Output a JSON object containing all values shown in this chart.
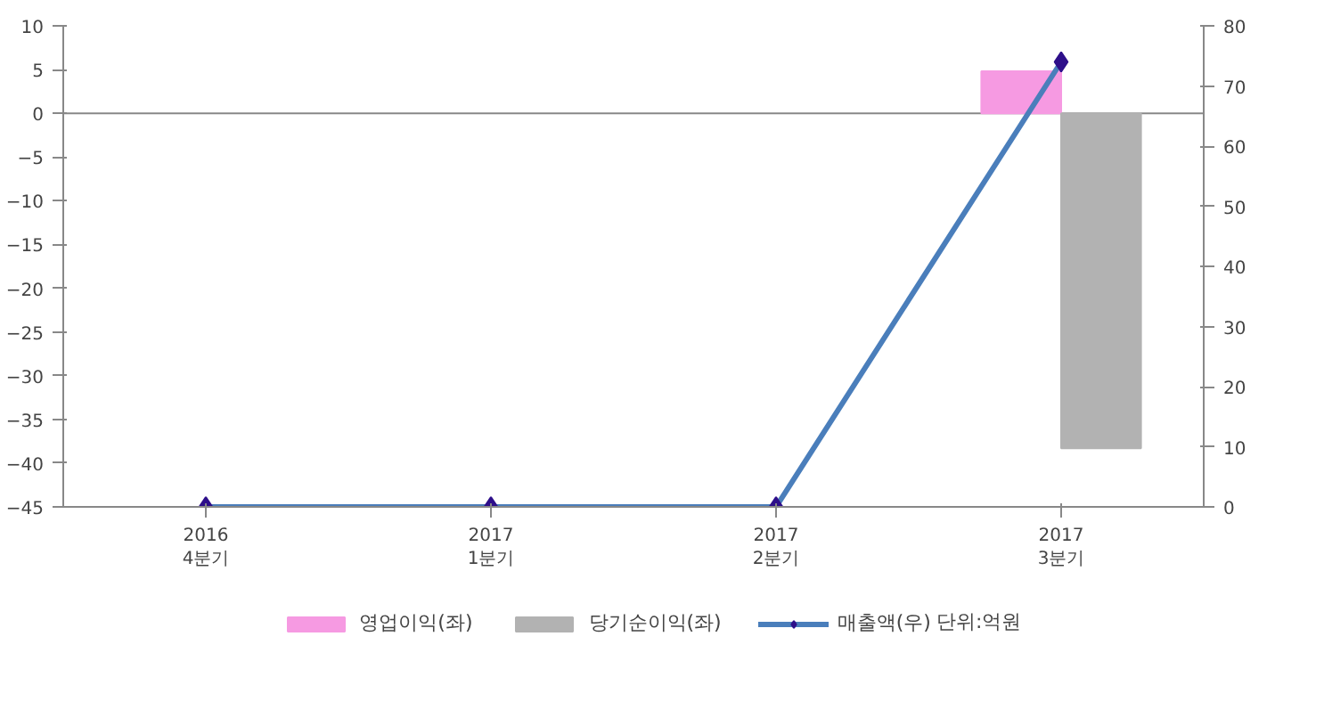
{
  "chart_data": {
    "type": "bar",
    "categories": [
      "2016\n4분기",
      "2017\n1분기",
      "2017\n2분기",
      "2017\n3분기"
    ],
    "series": [
      {
        "name": "영업이익(좌)",
        "color": "#f69ae2",
        "values": [
          null,
          null,
          null,
          4.8
        ]
      },
      {
        "name": "당기순이익(좌)",
        "color": "#b2b2b2",
        "values": [
          null,
          null,
          null,
          -38.3
        ]
      },
      {
        "name": "매출액(우)",
        "type": "line",
        "axis": "y2",
        "color": "#4a7ebb",
        "marker": "diamond",
        "values": [
          0,
          0,
          0,
          74
        ]
      }
    ],
    "ylim": [
      -45,
      10
    ],
    "yticks": [
      -45,
      -40,
      -35,
      -30,
      -25,
      -20,
      -15,
      -10,
      -5,
      0,
      5,
      10
    ],
    "y2lim": [
      0,
      80
    ],
    "y2ticks": [
      0,
      10,
      20,
      30,
      40,
      50,
      60,
      70,
      80
    ],
    "annotations": [
      "단위:억원"
    ],
    "ref_lines": [
      {
        "axis": "y",
        "value": 0,
        "color": "#888888"
      }
    ],
    "legend": "bottom",
    "grid": false
  }
}
